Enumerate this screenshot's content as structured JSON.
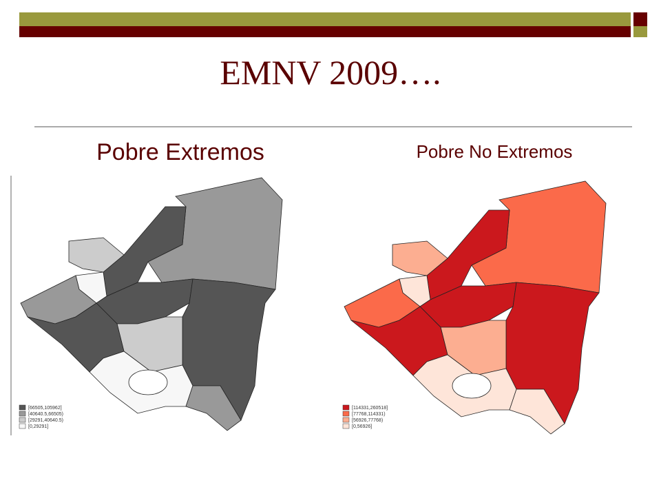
{
  "title": "EMNV 2009….",
  "maps": [
    {
      "heading": "Pobre Extremos",
      "legend": [
        {
          "label": "[66505,105962]",
          "color": "#555555"
        },
        {
          "label": "[40640.5,66505)",
          "color": "#999999"
        },
        {
          "label": "[29291,40640.5)",
          "color": "#cccccc"
        },
        {
          "label": "[0,29291]",
          "color": "#f7f7f7"
        }
      ]
    },
    {
      "heading": "Pobre No Extremos",
      "legend": [
        {
          "label": "[114331,260518]",
          "color": "#cb181d"
        },
        {
          "label": "[77768,114331)",
          "color": "#fb6a4a"
        },
        {
          "label": "[56926,77768)",
          "color": "#fcae91"
        },
        {
          "label": "[0,56926]",
          "color": "#fee5d9"
        }
      ]
    }
  ]
}
